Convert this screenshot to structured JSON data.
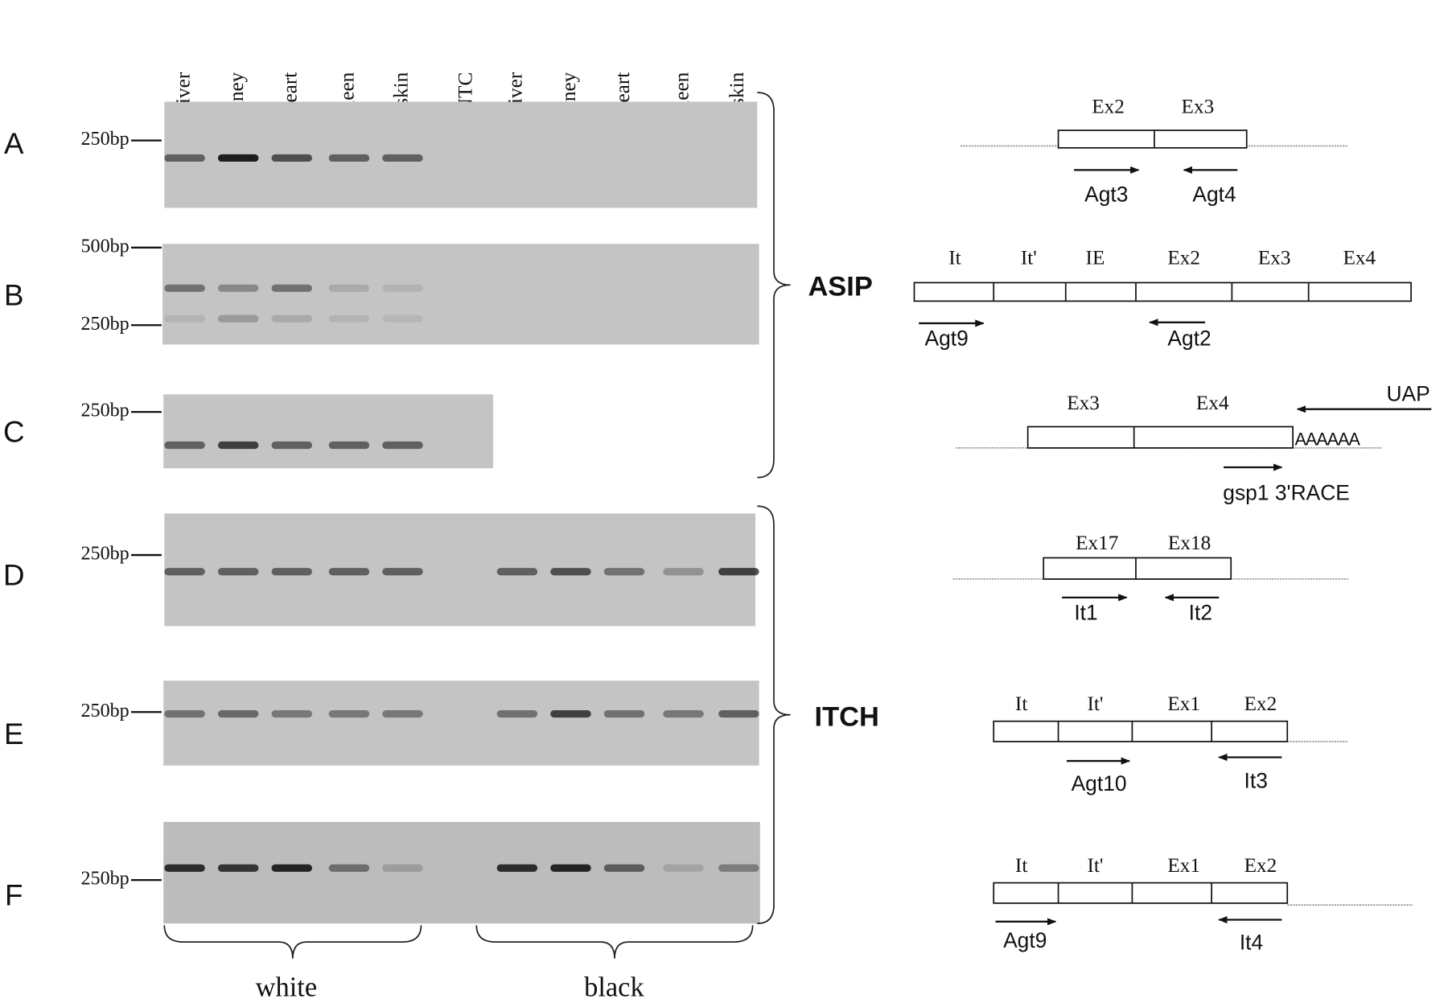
{
  "lanes": [
    "liver",
    "kidney",
    "heart",
    "spleen",
    "skin",
    "NTC",
    "liver",
    "kidney",
    "heart",
    "spleen",
    "skin"
  ],
  "panels": [
    {
      "label": "A",
      "markers": [
        "250bp"
      ]
    },
    {
      "label": "B",
      "markers": [
        "500bp",
        "250bp"
      ]
    },
    {
      "label": "C",
      "markers": [
        "250bp"
      ]
    },
    {
      "label": "D",
      "markers": [
        "250bp"
      ]
    },
    {
      "label": "E",
      "markers": [
        "250bp"
      ]
    },
    {
      "label": "F",
      "markers": [
        "250bp"
      ]
    }
  ],
  "genes": [
    "ASIP",
    "ITCH"
  ],
  "groups": [
    "white",
    "black"
  ],
  "diagrams": [
    {
      "segments": [
        "Ex2",
        "Ex3"
      ],
      "primers": [
        "Agt3",
        "Agt4"
      ]
    },
    {
      "segments": [
        "It",
        "It'",
        "IE",
        "Ex2",
        "Ex3",
        "Ex4"
      ],
      "primers": [
        "Agt9",
        "Agt2"
      ]
    },
    {
      "segments": [
        "Ex3",
        "Ex4"
      ],
      "primers": [
        "UAP",
        "gsp1 3'RACE"
      ],
      "tail": "AAAAAA"
    },
    {
      "segments": [
        "Ex17",
        "Ex18"
      ],
      "primers": [
        "It1",
        "It2"
      ]
    },
    {
      "segments": [
        "It",
        "It'",
        "Ex1",
        "Ex2"
      ],
      "primers": [
        "Agt10",
        "It3"
      ]
    },
    {
      "segments": [
        "It",
        "It'",
        "Ex1",
        "Ex2"
      ],
      "primers": [
        "Agt9",
        "It4"
      ]
    }
  ]
}
